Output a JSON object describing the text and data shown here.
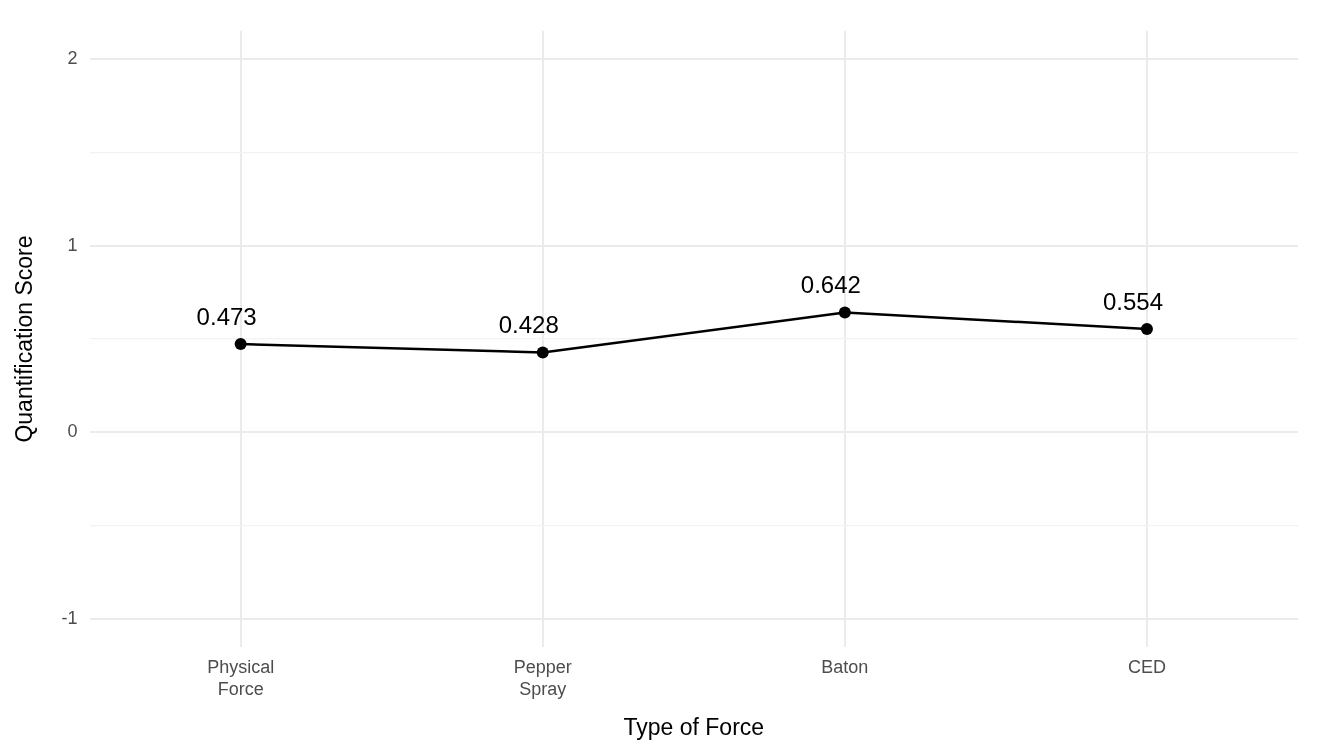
{
  "chart_data": {
    "type": "line",
    "xlabel": "Type of Force",
    "ylabel": "Quantification Score",
    "categories": [
      "Physical\nForce",
      "Pepper\nSpray",
      "Baton",
      "CED"
    ],
    "series": [
      {
        "color": "#000000",
        "values": [
          0.473,
          0.428,
          0.642,
          0.554
        ]
      }
    ],
    "ylim": [
      -1.15,
      2.15
    ],
    "yticks": [
      -1,
      {
        "value": -0.5,
        "label": null
      },
      0,
      {
        "value": 0.5,
        "label": null
      },
      1,
      {
        "value": 1.5,
        "label": null
      },
      2
    ],
    "grid": true,
    "marker": "circle",
    "line_style": "solid",
    "data_labels": true
  }
}
